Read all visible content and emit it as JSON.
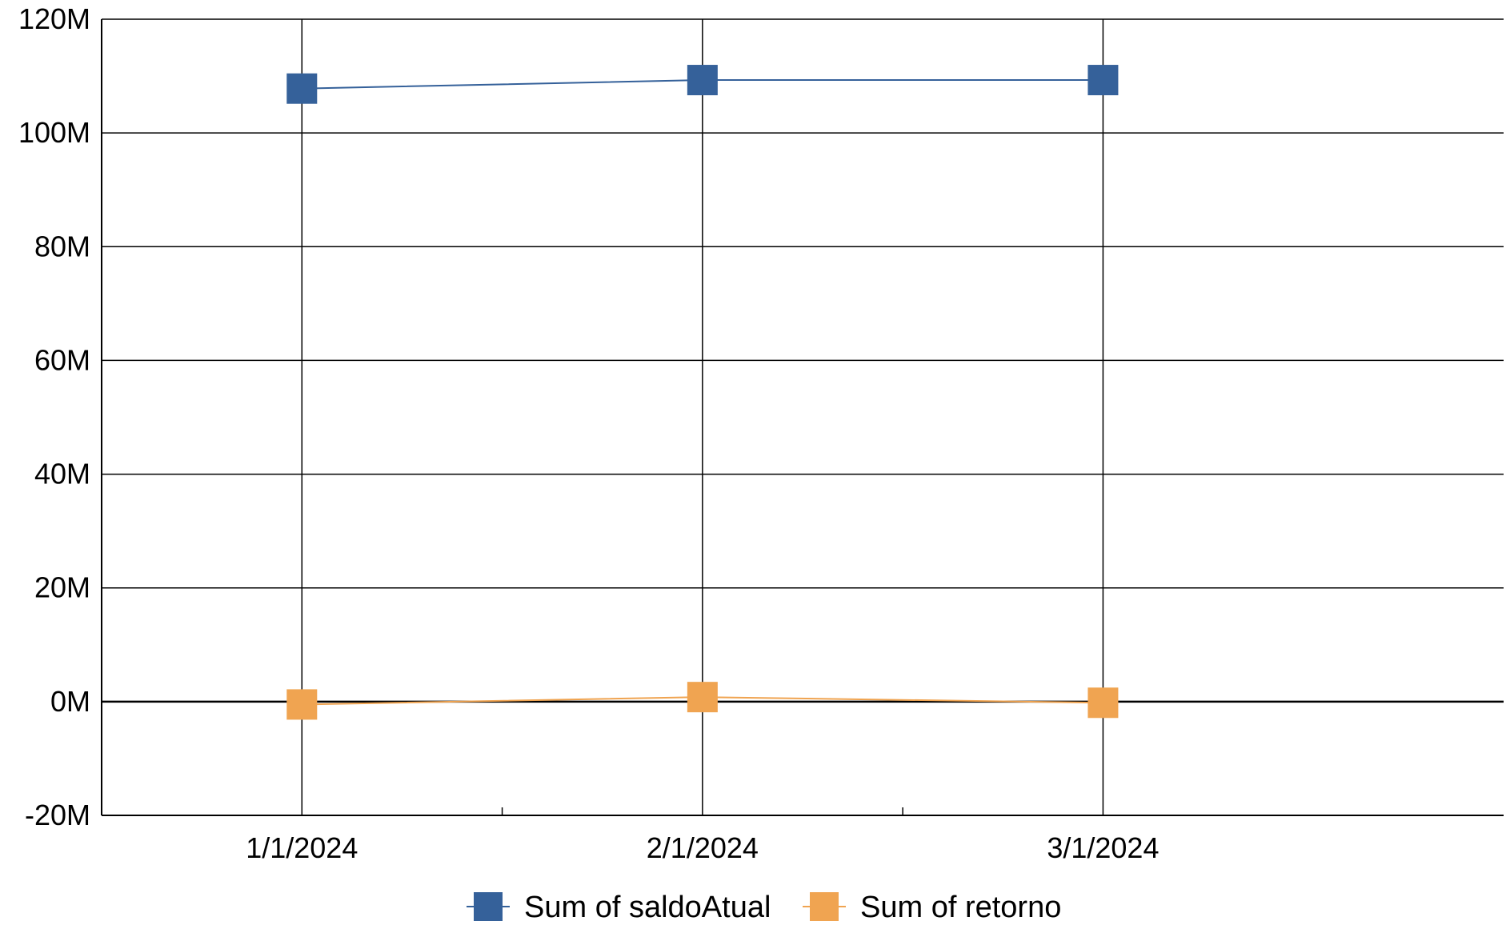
{
  "chart_data": {
    "type": "line",
    "title": "",
    "xlabel": "",
    "ylabel": "",
    "categories": [
      "1/1/2024",
      "2/1/2024",
      "3/1/2024"
    ],
    "y_ticks": [
      "-20M",
      "0M",
      "20M",
      "40M",
      "60M",
      "80M",
      "100M",
      "120M"
    ],
    "ylim": [
      -20000000,
      120000000
    ],
    "grid": true,
    "legend_position": "bottom",
    "series": [
      {
        "name": "Sum of saldoAtual",
        "values": [
          107800000,
          109300000,
          109300000
        ],
        "color": "#35619a",
        "marker": "square"
      },
      {
        "name": "Sum of retorno",
        "values": [
          -500000,
          800000,
          -200000
        ],
        "color": "#f0a451",
        "marker": "square"
      }
    ]
  }
}
